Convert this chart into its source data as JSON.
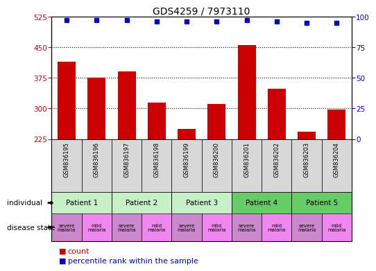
{
  "title": "GDS4259 / 7973110",
  "samples": [
    "GSM836195",
    "GSM836196",
    "GSM836197",
    "GSM836198",
    "GSM836199",
    "GSM836200",
    "GSM836201",
    "GSM836202",
    "GSM836203",
    "GSM836204"
  ],
  "counts": [
    415,
    375,
    390,
    315,
    250,
    310,
    455,
    348,
    243,
    297
  ],
  "percentile_ranks": [
    97,
    97,
    97,
    96,
    96,
    96,
    97,
    96,
    95,
    95
  ],
  "ylim_left": [
    225,
    525
  ],
  "ylim_right": [
    0,
    100
  ],
  "yticks_left": [
    225,
    300,
    375,
    450,
    525
  ],
  "yticks_right": [
    0,
    25,
    50,
    75,
    100
  ],
  "patients": [
    {
      "label": "Patient 1",
      "start": 0,
      "end": 2,
      "color": "#c8f0c8"
    },
    {
      "label": "Patient 2",
      "start": 2,
      "end": 4,
      "color": "#c8f0c8"
    },
    {
      "label": "Patient 3",
      "start": 4,
      "end": 6,
      "color": "#c8f0c8"
    },
    {
      "label": "Patient 4",
      "start": 6,
      "end": 8,
      "color": "#66cc66"
    },
    {
      "label": "Patient 5",
      "start": 8,
      "end": 10,
      "color": "#66cc66"
    }
  ],
  "disease_states": [
    {
      "label": "severe\nmalaria",
      "color": "#cc88cc"
    },
    {
      "label": "mild\nmalaria",
      "color": "#ee88ee"
    },
    {
      "label": "severe\nmalaria",
      "color": "#cc88cc"
    },
    {
      "label": "mild\nmalaria",
      "color": "#ee88ee"
    },
    {
      "label": "severe\nmalaria",
      "color": "#cc88cc"
    },
    {
      "label": "mild\nmalaria",
      "color": "#ee88ee"
    },
    {
      "label": "severe\nmalaria",
      "color": "#cc88cc"
    },
    {
      "label": "mild\nmalaria",
      "color": "#ee88ee"
    },
    {
      "label": "severe\nmalaria",
      "color": "#cc88cc"
    },
    {
      "label": "mild\nmalaria",
      "color": "#ee88ee"
    }
  ],
  "bar_color": "#cc0000",
  "dot_color": "#0000cc",
  "sample_label_color": "#000000",
  "left_axis_color": "#cc0000",
  "right_axis_color": "#0000cc",
  "background_color": "#ffffff",
  "sample_box_color": "#d8d8d8",
  "outer_border_color": "#000000"
}
